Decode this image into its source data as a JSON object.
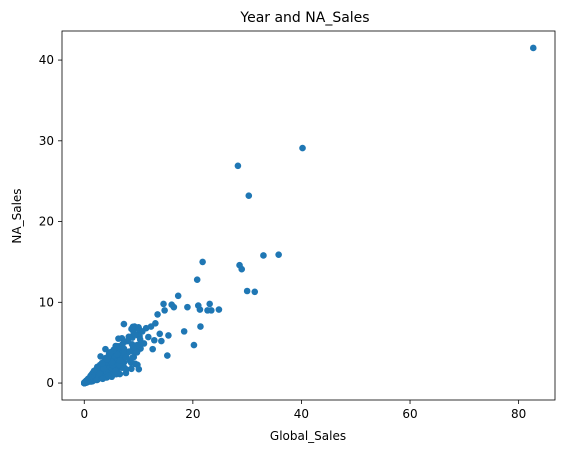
{
  "chart_data": {
    "type": "scatter",
    "title": "Year and NA_Sales",
    "xlabel": "Global_Sales",
    "ylabel": "NA_Sales",
    "xlim": [
      -4.1,
      86.7
    ],
    "ylim": [
      -2.1,
      43.6
    ],
    "xticks": [
      0,
      20,
      40,
      60,
      80
    ],
    "yticks": [
      0,
      10,
      20,
      30,
      40
    ],
    "grid": false,
    "marker_color": "#1f77b4",
    "points": [
      [
        82.7,
        41.5
      ],
      [
        40.2,
        29.1
      ],
      [
        35.8,
        15.9
      ],
      [
        33.0,
        15.8
      ],
      [
        31.4,
        11.3
      ],
      [
        30.3,
        23.2
      ],
      [
        30.0,
        11.4
      ],
      [
        29.0,
        14.1
      ],
      [
        28.6,
        14.6
      ],
      [
        28.3,
        26.9
      ],
      [
        24.8,
        9.1
      ],
      [
        23.4,
        9.0
      ],
      [
        23.1,
        9.8
      ],
      [
        22.7,
        9.0
      ],
      [
        21.8,
        15.0
      ],
      [
        21.3,
        9.1
      ],
      [
        21.0,
        9.6
      ],
      [
        21.4,
        7.0
      ],
      [
        20.8,
        12.8
      ],
      [
        20.2,
        4.7
      ],
      [
        19.0,
        9.4
      ],
      [
        18.4,
        6.4
      ],
      [
        17.3,
        10.8
      ],
      [
        16.5,
        9.4
      ],
      [
        16.1,
        9.7
      ],
      [
        15.5,
        5.9
      ],
      [
        15.3,
        3.4
      ],
      [
        14.8,
        9.0
      ],
      [
        14.6,
        9.8
      ],
      [
        14.2,
        5.2
      ],
      [
        13.9,
        6.1
      ],
      [
        13.5,
        8.5
      ],
      [
        13.1,
        7.4
      ],
      [
        12.9,
        5.3
      ],
      [
        12.6,
        4.2
      ],
      [
        12.3,
        7.0
      ],
      [
        11.8,
        5.7
      ],
      [
        11.4,
        6.8
      ],
      [
        11.0,
        4.9
      ],
      [
        10.7,
        6.4
      ],
      [
        10.3,
        5.4
      ],
      [
        10.0,
        6.9
      ],
      [
        9.7,
        3.8
      ],
      [
        9.4,
        6.0
      ],
      [
        9.0,
        4.4
      ],
      [
        8.7,
        6.7
      ],
      [
        8.3,
        3.9
      ],
      [
        8.0,
        5.2
      ],
      [
        7.7,
        3.2
      ],
      [
        7.3,
        7.3
      ],
      [
        7.0,
        4.6
      ],
      [
        6.6,
        2.8
      ],
      [
        6.3,
        5.5
      ],
      [
        6.0,
        3.6
      ],
      [
        5.7,
        1.5
      ],
      [
        5.4,
        4.1
      ],
      [
        5.1,
        2.6
      ],
      [
        4.8,
        3.8
      ],
      [
        4.5,
        0.9
      ],
      [
        4.2,
        2.9
      ],
      [
        3.9,
        4.2
      ],
      [
        3.6,
        1.8
      ],
      [
        3.3,
        2.4
      ],
      [
        3.0,
        3.3
      ],
      [
        2.7,
        1.2
      ],
      [
        2.4,
        2.0
      ],
      [
        2.1,
        0.6
      ],
      [
        1.8,
        1.5
      ],
      [
        1.5,
        0.9
      ],
      [
        1.2,
        0.7
      ],
      [
        0.9,
        0.4
      ],
      [
        0.6,
        0.3
      ],
      [
        0.3,
        0.1
      ],
      [
        0.1,
        0.0
      ],
      [
        0.05,
        0.02
      ]
    ],
    "dense_cluster": {
      "x_max": 10.5,
      "y_ratio_min": 0.15,
      "y_ratio_max": 0.8,
      "count": 260
    }
  }
}
